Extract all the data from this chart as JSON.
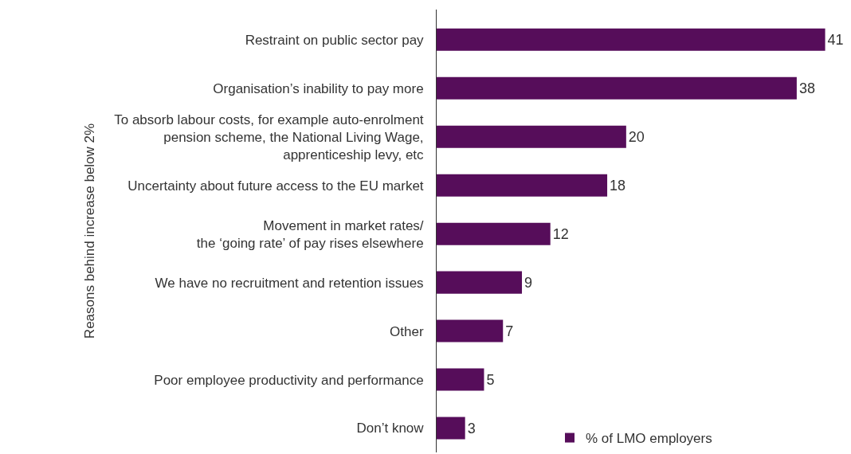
{
  "chart_data": {
    "type": "bar",
    "orientation": "horizontal",
    "ylabel": "Reasons behind increase below 2%",
    "categories": [
      "Restraint on public sector pay",
      "Organisation’s inability to pay more",
      "To absorb labour costs, for example auto-enrolment\npension scheme, the National Living Wage,\napprenticeship levy, etc",
      "Uncertainty about future access to the EU market",
      "Movement in market rates/\nthe ‘going rate’ of pay rises elsewhere",
      "We have no recruitment and retention issues",
      "Other",
      "Poor employee productivity and performance",
      "Don’t know"
    ],
    "series": [
      {
        "name": "% of LMO employers",
        "color": "#560d5a",
        "values": [
          41,
          38,
          20,
          18,
          12,
          9,
          7,
          5,
          3
        ]
      }
    ],
    "data_labels": true,
    "legend": "bottom"
  }
}
